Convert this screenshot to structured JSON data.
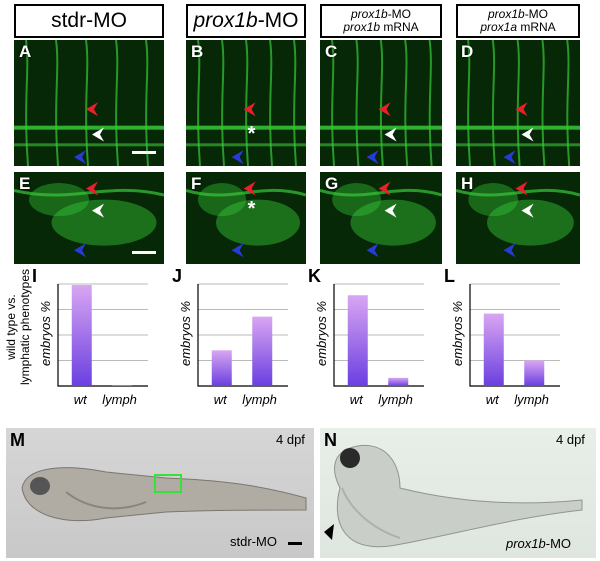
{
  "headers": {
    "col1": {
      "line1": "stdr-MO"
    },
    "col2": {
      "line1_italic": "prox1b",
      "line1_rest": "-MO"
    },
    "col3": {
      "line1_italic": "prox1b",
      "line1_rest": "-MO",
      "line2_italic": "prox1b",
      "line2_rest": " mRNA"
    },
    "col4": {
      "line1_italic": "prox1b",
      "line1_rest": "-MO",
      "line2_italic": "prox1a",
      "line2_rest": " mRNA"
    }
  },
  "panels": {
    "A": "A",
    "B": "B",
    "C": "C",
    "D": "D",
    "E": "E",
    "F": "F",
    "G": "G",
    "H": "H",
    "asterisk": "*"
  },
  "side_label": {
    "line1": "wild type vs.",
    "line2": "lymphatic phenotypes"
  },
  "chart_data": [
    {
      "type": "bar",
      "panel": "I",
      "categories": [
        "wt",
        "lymph"
      ],
      "values": [
        99,
        1
      ],
      "ylabel": "embryos %",
      "ylim": [
        0,
        100
      ]
    },
    {
      "type": "bar",
      "panel": "J",
      "categories": [
        "wt",
        "lymph"
      ],
      "values": [
        35,
        68
      ],
      "ylabel": "embryos %",
      "ylim": [
        0,
        100
      ]
    },
    {
      "type": "bar",
      "panel": "K",
      "categories": [
        "wt",
        "lymph"
      ],
      "values": [
        89,
        8
      ],
      "ylabel": "embryos %",
      "ylim": [
        0,
        100
      ]
    },
    {
      "type": "bar",
      "panel": "L",
      "categories": [
        "wt",
        "lymph"
      ],
      "values": [
        71,
        25
      ],
      "ylabel": "embryos %",
      "ylim": [
        0,
        100
      ]
    }
  ],
  "bottom": {
    "M": {
      "label": "M",
      "stage": "4 dpf",
      "caption": "stdr-MO"
    },
    "N": {
      "label": "N",
      "stage": "4 dpf",
      "caption_italic": "prox1b",
      "caption_rest": "-MO"
    }
  },
  "colors": {
    "arrow_red": "#e8202a",
    "arrow_white": "#ffffff",
    "arrow_blue": "#2a3ad8",
    "bar_top": "#d9a6f2",
    "bar_bottom": "#6a3fe0",
    "fluor": "#38c838"
  }
}
